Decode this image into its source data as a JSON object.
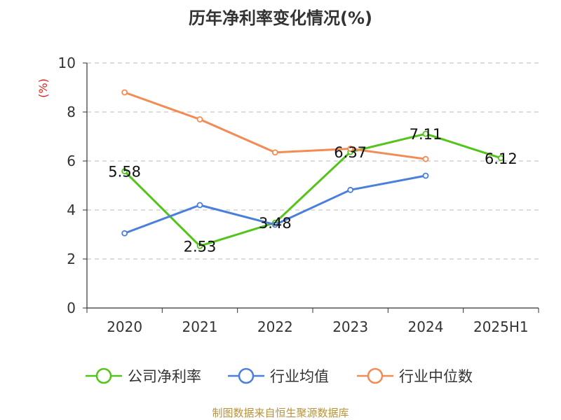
{
  "chart_data": {
    "type": "line",
    "title": "历年净利率变化情况(%)",
    "ylabel": "(%)",
    "categories": [
      "2020",
      "2021",
      "2022",
      "2023",
      "2024",
      "2025H1"
    ],
    "ylim": [
      0,
      10
    ],
    "yticks": [
      0,
      2,
      4,
      6,
      8,
      10
    ],
    "grid": true,
    "legend_position": "bottom",
    "series": [
      {
        "name": "公司净利率",
        "color": "#52c41a",
        "values": [
          5.58,
          2.53,
          3.48,
          6.37,
          7.11,
          6.12
        ],
        "labels": [
          "5.58",
          "2.53",
          "3.48",
          "6.37",
          "7.11",
          "6.12"
        ]
      },
      {
        "name": "行业均值",
        "color": "#4a7fdb",
        "values": [
          3.05,
          4.2,
          3.4,
          4.82,
          5.4,
          null
        ]
      },
      {
        "name": "行业中位数",
        "color": "#f28b54",
        "values": [
          8.8,
          7.7,
          6.35,
          6.5,
          6.08,
          null
        ]
      }
    ]
  },
  "footer": {
    "source": "制图数据来自恒生聚源数据库"
  }
}
